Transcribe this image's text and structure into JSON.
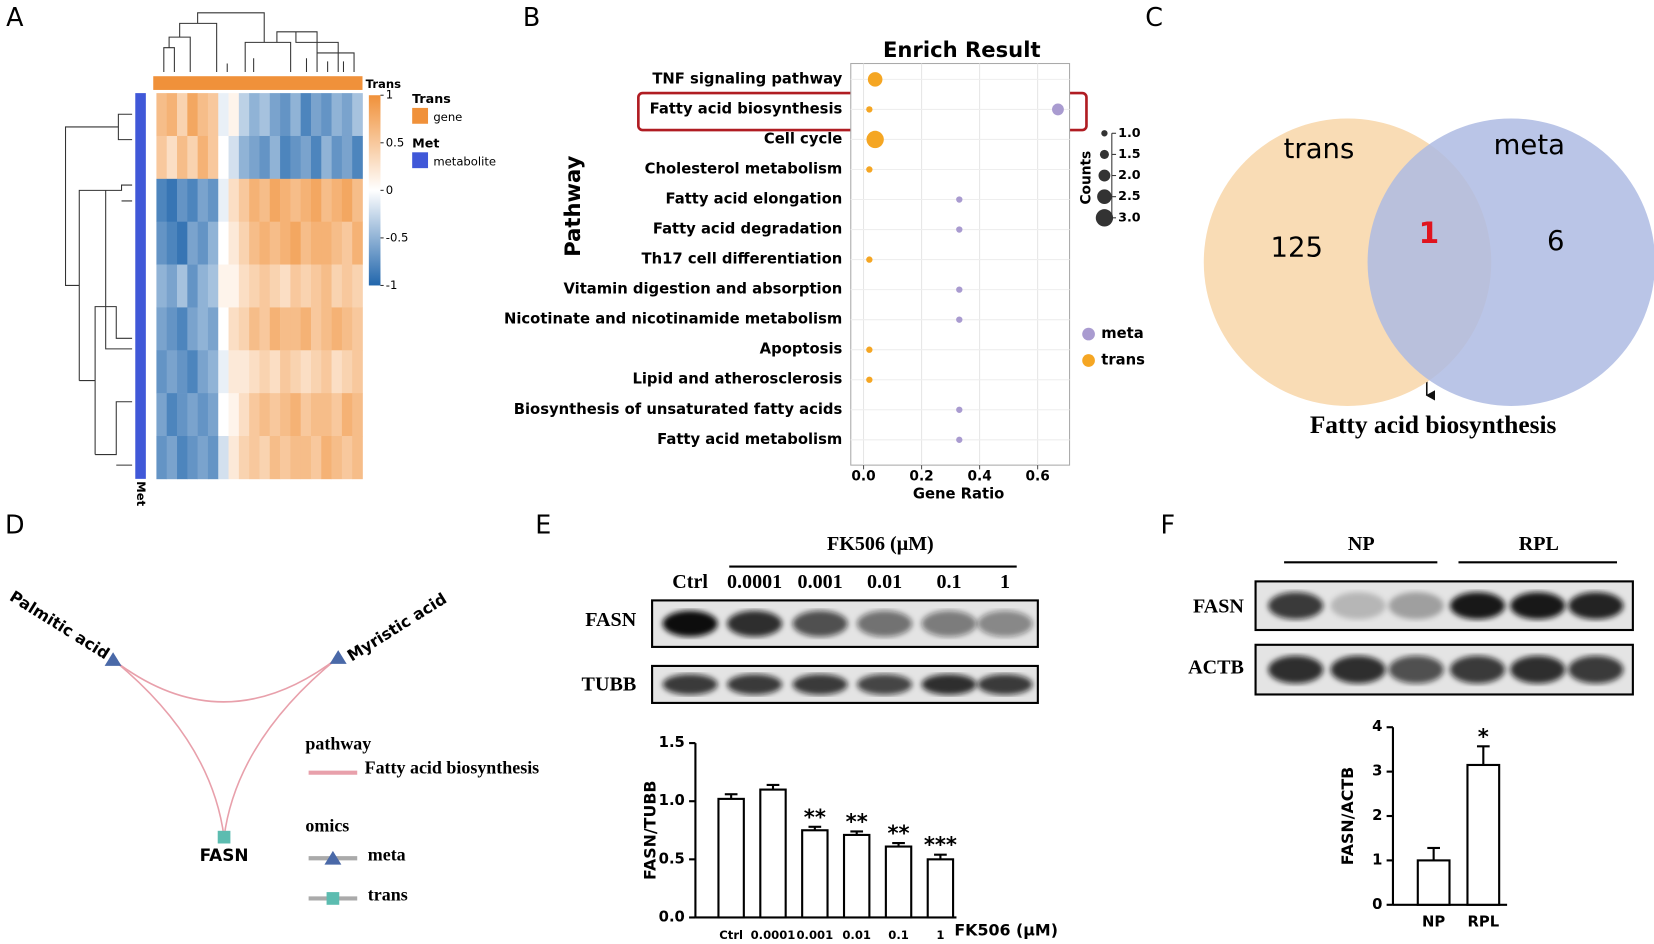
{
  "chart_data": [
    {
      "type": "heatmap",
      "panel": "A",
      "clim": [
        -1,
        1
      ],
      "colorbar_ticks": [
        1,
        0.5,
        0,
        -0.5,
        -1
      ],
      "legend": [
        {
          "title": "Trans",
          "label": "gene",
          "color": "#f0913a"
        },
        {
          "title": "Met",
          "label": "metabolite",
          "color": "#4058d8"
        }
      ],
      "values": [
        [
          0.6,
          0.7,
          0.4,
          0.8,
          0.6,
          0.5,
          -0.1,
          0.1,
          -0.3,
          -0.5,
          -0.4,
          -0.6,
          -0.7,
          -0.5,
          -0.8,
          -0.6,
          -0.7,
          -0.5,
          -0.6,
          -0.4
        ],
        [
          0.5,
          0.3,
          0.6,
          0.4,
          0.7,
          0.5,
          0.0,
          -0.2,
          -0.5,
          -0.6,
          -0.7,
          -0.5,
          -0.8,
          -0.7,
          -0.6,
          -0.8,
          -0.5,
          -0.7,
          -0.6,
          -0.8
        ],
        [
          -0.8,
          -0.9,
          -0.7,
          -0.8,
          -0.6,
          -0.7,
          -0.1,
          0.3,
          0.5,
          0.7,
          0.6,
          0.8,
          0.7,
          0.6,
          0.7,
          0.8,
          0.6,
          0.7,
          0.8,
          0.6
        ],
        [
          -0.7,
          -0.8,
          -0.9,
          -0.6,
          -0.7,
          -0.5,
          0.0,
          0.2,
          0.4,
          0.6,
          0.7,
          0.6,
          0.7,
          0.8,
          0.6,
          0.7,
          0.7,
          0.6,
          0.5,
          0.7
        ],
        [
          -0.5,
          -0.6,
          -0.4,
          -0.7,
          -0.5,
          -0.4,
          0.1,
          0.1,
          0.3,
          0.4,
          0.5,
          0.4,
          0.3,
          0.5,
          0.4,
          0.5,
          0.6,
          0.4,
          0.5,
          0.4
        ],
        [
          -0.6,
          -0.7,
          -0.8,
          -0.6,
          -0.5,
          -0.6,
          0.0,
          0.3,
          0.4,
          0.6,
          0.5,
          0.7,
          0.6,
          0.6,
          0.7,
          0.5,
          0.6,
          0.7,
          0.6,
          0.5
        ],
        [
          -0.7,
          -0.6,
          -0.7,
          -0.8,
          -0.6,
          -0.5,
          -0.1,
          0.2,
          0.2,
          0.3,
          0.4,
          0.3,
          0.5,
          0.4,
          0.3,
          0.4,
          0.5,
          0.3,
          0.4,
          0.5
        ],
        [
          -0.6,
          -0.8,
          -0.7,
          -0.6,
          -0.7,
          -0.6,
          0.0,
          0.1,
          0.3,
          0.5,
          0.6,
          0.5,
          0.6,
          0.7,
          0.5,
          0.6,
          0.6,
          0.5,
          0.7,
          0.6
        ],
        [
          -0.7,
          -0.6,
          -0.8,
          -0.7,
          -0.6,
          -0.7,
          -0.2,
          0.2,
          0.4,
          0.5,
          0.4,
          0.6,
          0.5,
          0.6,
          0.6,
          0.5,
          0.7,
          0.6,
          0.5,
          0.6
        ]
      ]
    },
    {
      "type": "dot",
      "panel": "B",
      "title": "Enrich Result",
      "x_label": "Gene Ratio",
      "y_label": "Pathway",
      "categories": [
        "TNF signaling pathway",
        "Fatty acid biosynthesis",
        "Cell cycle",
        "Cholesterol metabolism",
        "Fatty acid elongation",
        "Fatty acid degradation",
        "Th17 cell differentiation",
        "Vitamin digestion and absorption",
        "Nicotinate and nicotinamide metabolism",
        "Apoptosis",
        "Lipid and atherosclerosis",
        "Biosynthesis of unsaturated fatty acids",
        "Fatty acid metabolism"
      ],
      "xlim": [
        -0.044,
        0.71
      ],
      "xticks": [
        {
          "value": 0,
          "label": "0.0"
        },
        0.2,
        0.4,
        0.6
      ],
      "grid": true,
      "size_label": "Counts",
      "size_ticks": [
        {
          "value": 1,
          "label": "1.0"
        },
        1.5,
        {
          "value": 2,
          "label": "2.0"
        },
        2.5,
        {
          "value": 3,
          "label": "3.0"
        }
      ],
      "series": [
        {
          "name": "meta",
          "color": "#a99bd0",
          "values": [
            null,
            0.67,
            null,
            null,
            0.33,
            0.33,
            null,
            0.33,
            0.33,
            null,
            null,
            0.33,
            0.33
          ],
          "sizes": [
            null,
            2,
            null,
            null,
            1,
            1,
            null,
            1,
            1,
            null,
            null,
            1,
            1
          ]
        },
        {
          "name": "trans",
          "color": "#f5a623",
          "values": [
            0.04,
            0.02,
            0.04,
            0.02,
            null,
            null,
            0.02,
            null,
            null,
            0.02,
            0.02,
            null,
            null
          ],
          "sizes": [
            2.5,
            1,
            3,
            1,
            null,
            null,
            1,
            null,
            null,
            1,
            1,
            null,
            null
          ]
        }
      ]
    },
    {
      "type": "venn",
      "panel": "C",
      "sets": [
        {
          "name": "trans",
          "only": 125,
          "color": "#f9dcb5"
        },
        {
          "name": "meta",
          "only": 6,
          "color": "#aebbe3"
        }
      ],
      "overlap": 1,
      "annotation": "Fatty acid biosynthesis"
    },
    {
      "type": "network",
      "panel": "D",
      "nodes": [
        {
          "label": "Palmitic acid",
          "omics": "meta"
        },
        {
          "label": "Myristic acid",
          "omics": "meta"
        },
        {
          "label": "FASN",
          "omics": "trans"
        }
      ],
      "edge_color": "#e8a0ab",
      "legend": {
        "pathway_title": "pathway",
        "pathway": "Fatty acid biosynthesis",
        "omics_title": "omics",
        "omics": [
          "meta",
          "trans"
        ]
      }
    },
    {
      "type": "bar",
      "panel": "E",
      "y_label": "FASN/TUBB",
      "x_label": "FK506 (μM)",
      "categories": [
        "Ctrl",
        "0.0001",
        "0.001",
        "0.01",
        "0.1",
        "1"
      ],
      "values": [
        1.02,
        1.1,
        0.75,
        0.71,
        0.61,
        0.5
      ],
      "errors": [
        0.04,
        0.04,
        0.03,
        0.03,
        0.03,
        0.04
      ],
      "annotations": [
        null,
        null,
        "**",
        "**",
        "**",
        "***"
      ],
      "ylim": [
        0,
        1.5
      ],
      "yticks": [
        {
          "value": 0,
          "label": "0.0"
        },
        0.5,
        {
          "value": 1,
          "label": "1.0"
        },
        1.5
      ],
      "blot": {
        "rows": [
          "FASN",
          "TUBB"
        ]
      }
    },
    {
      "type": "bar",
      "panel": "F",
      "y_label": "FASN/ACTB",
      "categories": [
        "NP",
        "RPL"
      ],
      "values": [
        1.0,
        3.15
      ],
      "errors": [
        0.28,
        0.42
      ],
      "annotations": [
        null,
        "*"
      ],
      "ylim": [
        0,
        4
      ],
      "yticks": [
        0,
        1,
        2,
        3,
        4
      ],
      "blot": {
        "rows": [
          "FASN",
          "ACTB"
        ]
      }
    }
  ]
}
